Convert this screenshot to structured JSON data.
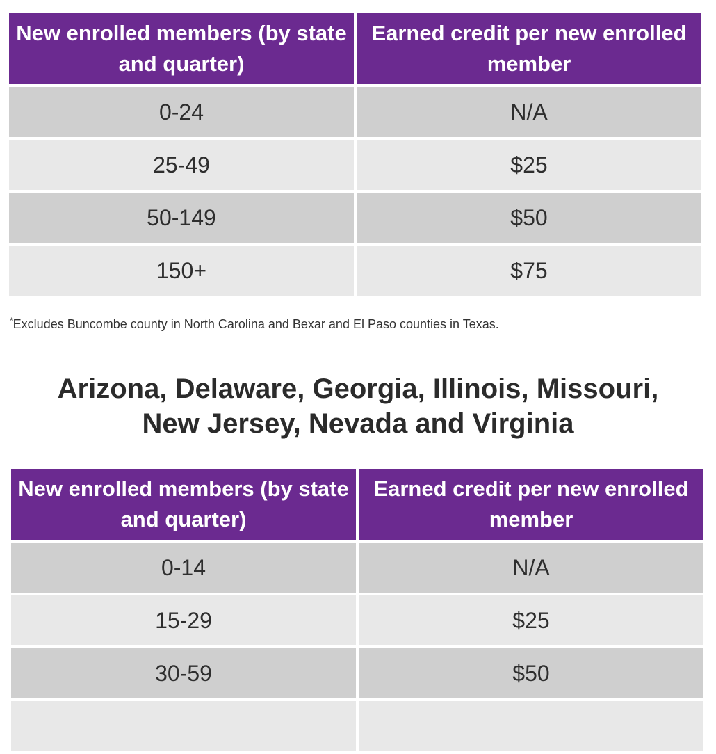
{
  "table1": {
    "headers": [
      "New enrolled members (by state and quarter)",
      "Earned credit per new enrolled member"
    ],
    "rows": [
      {
        "members": "0-24",
        "credit": "N/A"
      },
      {
        "members": "25-49",
        "credit": "$25"
      },
      {
        "members": "50-149",
        "credit": "$50"
      },
      {
        "members": "150+",
        "credit": "$75"
      }
    ]
  },
  "footnote": {
    "marker": "*",
    "text": "Excludes Buncombe county in North Carolina and Bexar and El Paso counties in Texas."
  },
  "section2": {
    "heading_line1": "Arizona, Delaware, Georgia, Illinois, Missouri,",
    "heading_line2": "New Jersey, Nevada and Virginia"
  },
  "table2": {
    "headers": [
      "New enrolled members (by state and quarter)",
      "Earned credit per new enrolled member"
    ],
    "rows": [
      {
        "members": "0-14",
        "credit": "N/A"
      },
      {
        "members": "15-29",
        "credit": "$25"
      },
      {
        "members": "30-59",
        "credit": "$50"
      }
    ]
  },
  "colors": {
    "header_bg": "#6b2a90",
    "row_dark": "#cfcfcf",
    "row_light": "#e8e8e8"
  }
}
